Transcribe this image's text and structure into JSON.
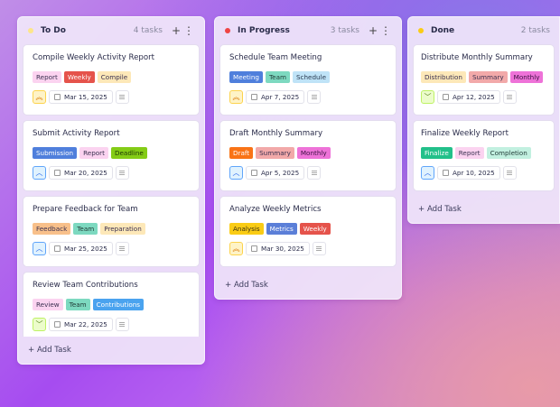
{
  "columns": [
    {
      "title": "To Do",
      "count": "4 tasks",
      "dot": "#fde68a",
      "add_label": "Add Task",
      "cards": [
        {
          "title": "Compile Weekly Activity Report",
          "priority": "high",
          "date": "Mar 15, 2025",
          "tags": [
            {
              "label": "Report",
              "bg": "#fbd3f0",
              "fg": "#3a3050"
            },
            {
              "label": "Weekly",
              "bg": "#e5534b",
              "fg": "#ffffff"
            },
            {
              "label": "Compile",
              "bg": "#fde8b8",
              "fg": "#3a3050"
            }
          ]
        },
        {
          "title": "Submit Activity Report",
          "priority": "medium",
          "date": "Mar 20, 2025",
          "tags": [
            {
              "label": "Submission",
              "bg": "#4f7fdc",
              "fg": "#ffffff"
            },
            {
              "label": "Report",
              "bg": "#fbd3f0",
              "fg": "#3a3050"
            },
            {
              "label": "Deadline",
              "bg": "#84cc16",
              "fg": "#1f3a05"
            }
          ]
        },
        {
          "title": "Prepare Feedback for Team",
          "priority": "medium",
          "date": "Mar 25, 2025",
          "tags": [
            {
              "label": "Feedback",
              "bg": "#f8c08a",
              "fg": "#3a3050"
            },
            {
              "label": "Team",
              "bg": "#7dd9c0",
              "fg": "#1f3a35"
            },
            {
              "label": "Preparation",
              "bg": "#fde8b8",
              "fg": "#3a3050"
            }
          ]
        },
        {
          "title": "Review Team Contributions",
          "priority": "low",
          "date": "Mar 22, 2025",
          "tags": [
            {
              "label": "Review",
              "bg": "#fbd3f0",
              "fg": "#3a3050"
            },
            {
              "label": "Team",
              "bg": "#7dd9c0",
              "fg": "#1f3a35"
            },
            {
              "label": "Contributions",
              "bg": "#4aa3ef",
              "fg": "#ffffff"
            }
          ]
        }
      ]
    },
    {
      "title": "In Progress",
      "count": "3 tasks",
      "dot": "#ef4444",
      "add_label": "Add Task",
      "cards": [
        {
          "title": "Schedule Team Meeting",
          "priority": "high",
          "date": "Apr 7, 2025",
          "tags": [
            {
              "label": "Meeting",
              "bg": "#4f7fdc",
              "fg": "#ffffff"
            },
            {
              "label": "Team",
              "bg": "#7dd9c0",
              "fg": "#1f3a35"
            },
            {
              "label": "Schedule",
              "bg": "#bfe3f7",
              "fg": "#2a3a50"
            }
          ]
        },
        {
          "title": "Draft Monthly Summary",
          "priority": "medium",
          "date": "Apr 5, 2025",
          "tags": [
            {
              "label": "Draft",
              "bg": "#f97316",
              "fg": "#ffffff"
            },
            {
              "label": "Summary",
              "bg": "#f2a9a9",
              "fg": "#3a3050"
            },
            {
              "label": "Monthly",
              "bg": "#ee72d8",
              "fg": "#3a1040"
            }
          ]
        },
        {
          "title": "Analyze Weekly Metrics",
          "priority": "high",
          "date": "Mar 30, 2025",
          "tags": [
            {
              "label": "Analysis",
              "bg": "#facc15",
              "fg": "#3a3010"
            },
            {
              "label": "Metrics",
              "bg": "#5b7fd8",
              "fg": "#ffffff"
            },
            {
              "label": "Weekly",
              "bg": "#e5534b",
              "fg": "#ffffff"
            }
          ]
        }
      ]
    },
    {
      "title": "Done",
      "count": "2 tasks",
      "dot": "#facc15",
      "add_label": "Add Task",
      "cards": [
        {
          "title": "Distribute Monthly Summary",
          "priority": "low",
          "date": "Apr 12, 2025",
          "tags": [
            {
              "label": "Distribution",
              "bg": "#fde8b8",
              "fg": "#3a3050"
            },
            {
              "label": "Summary",
              "bg": "#f2a9a9",
              "fg": "#3a3050"
            },
            {
              "label": "Monthly",
              "bg": "#ee72d8",
              "fg": "#3a1040"
            }
          ]
        },
        {
          "title": "Finalize Weekly Report",
          "priority": "medium",
          "date": "Apr 10, 2025",
          "tags": [
            {
              "label": "Finalize",
              "bg": "#22c08a",
              "fg": "#ffffff"
            },
            {
              "label": "Report",
              "bg": "#fbd3f0",
              "fg": "#3a3050"
            },
            {
              "label": "Completion",
              "bg": "#c2f0e0",
              "fg": "#1f3a35"
            }
          ]
        }
      ]
    }
  ],
  "priority_styles": {
    "high": {
      "icon": "double-chevron-up",
      "glyph": "︽",
      "bg": "#fef3c7",
      "border": "#fcd34d",
      "fg": "#d97706"
    },
    "medium": {
      "icon": "chevron-up",
      "glyph": "︿",
      "bg": "#e0f2fe",
      "border": "#60a5fa",
      "fg": "#2563eb"
    },
    "low": {
      "icon": "chevron-down",
      "glyph": "﹀",
      "bg": "#ecfccb",
      "border": "#bef264",
      "fg": "#4d7c0f"
    }
  }
}
